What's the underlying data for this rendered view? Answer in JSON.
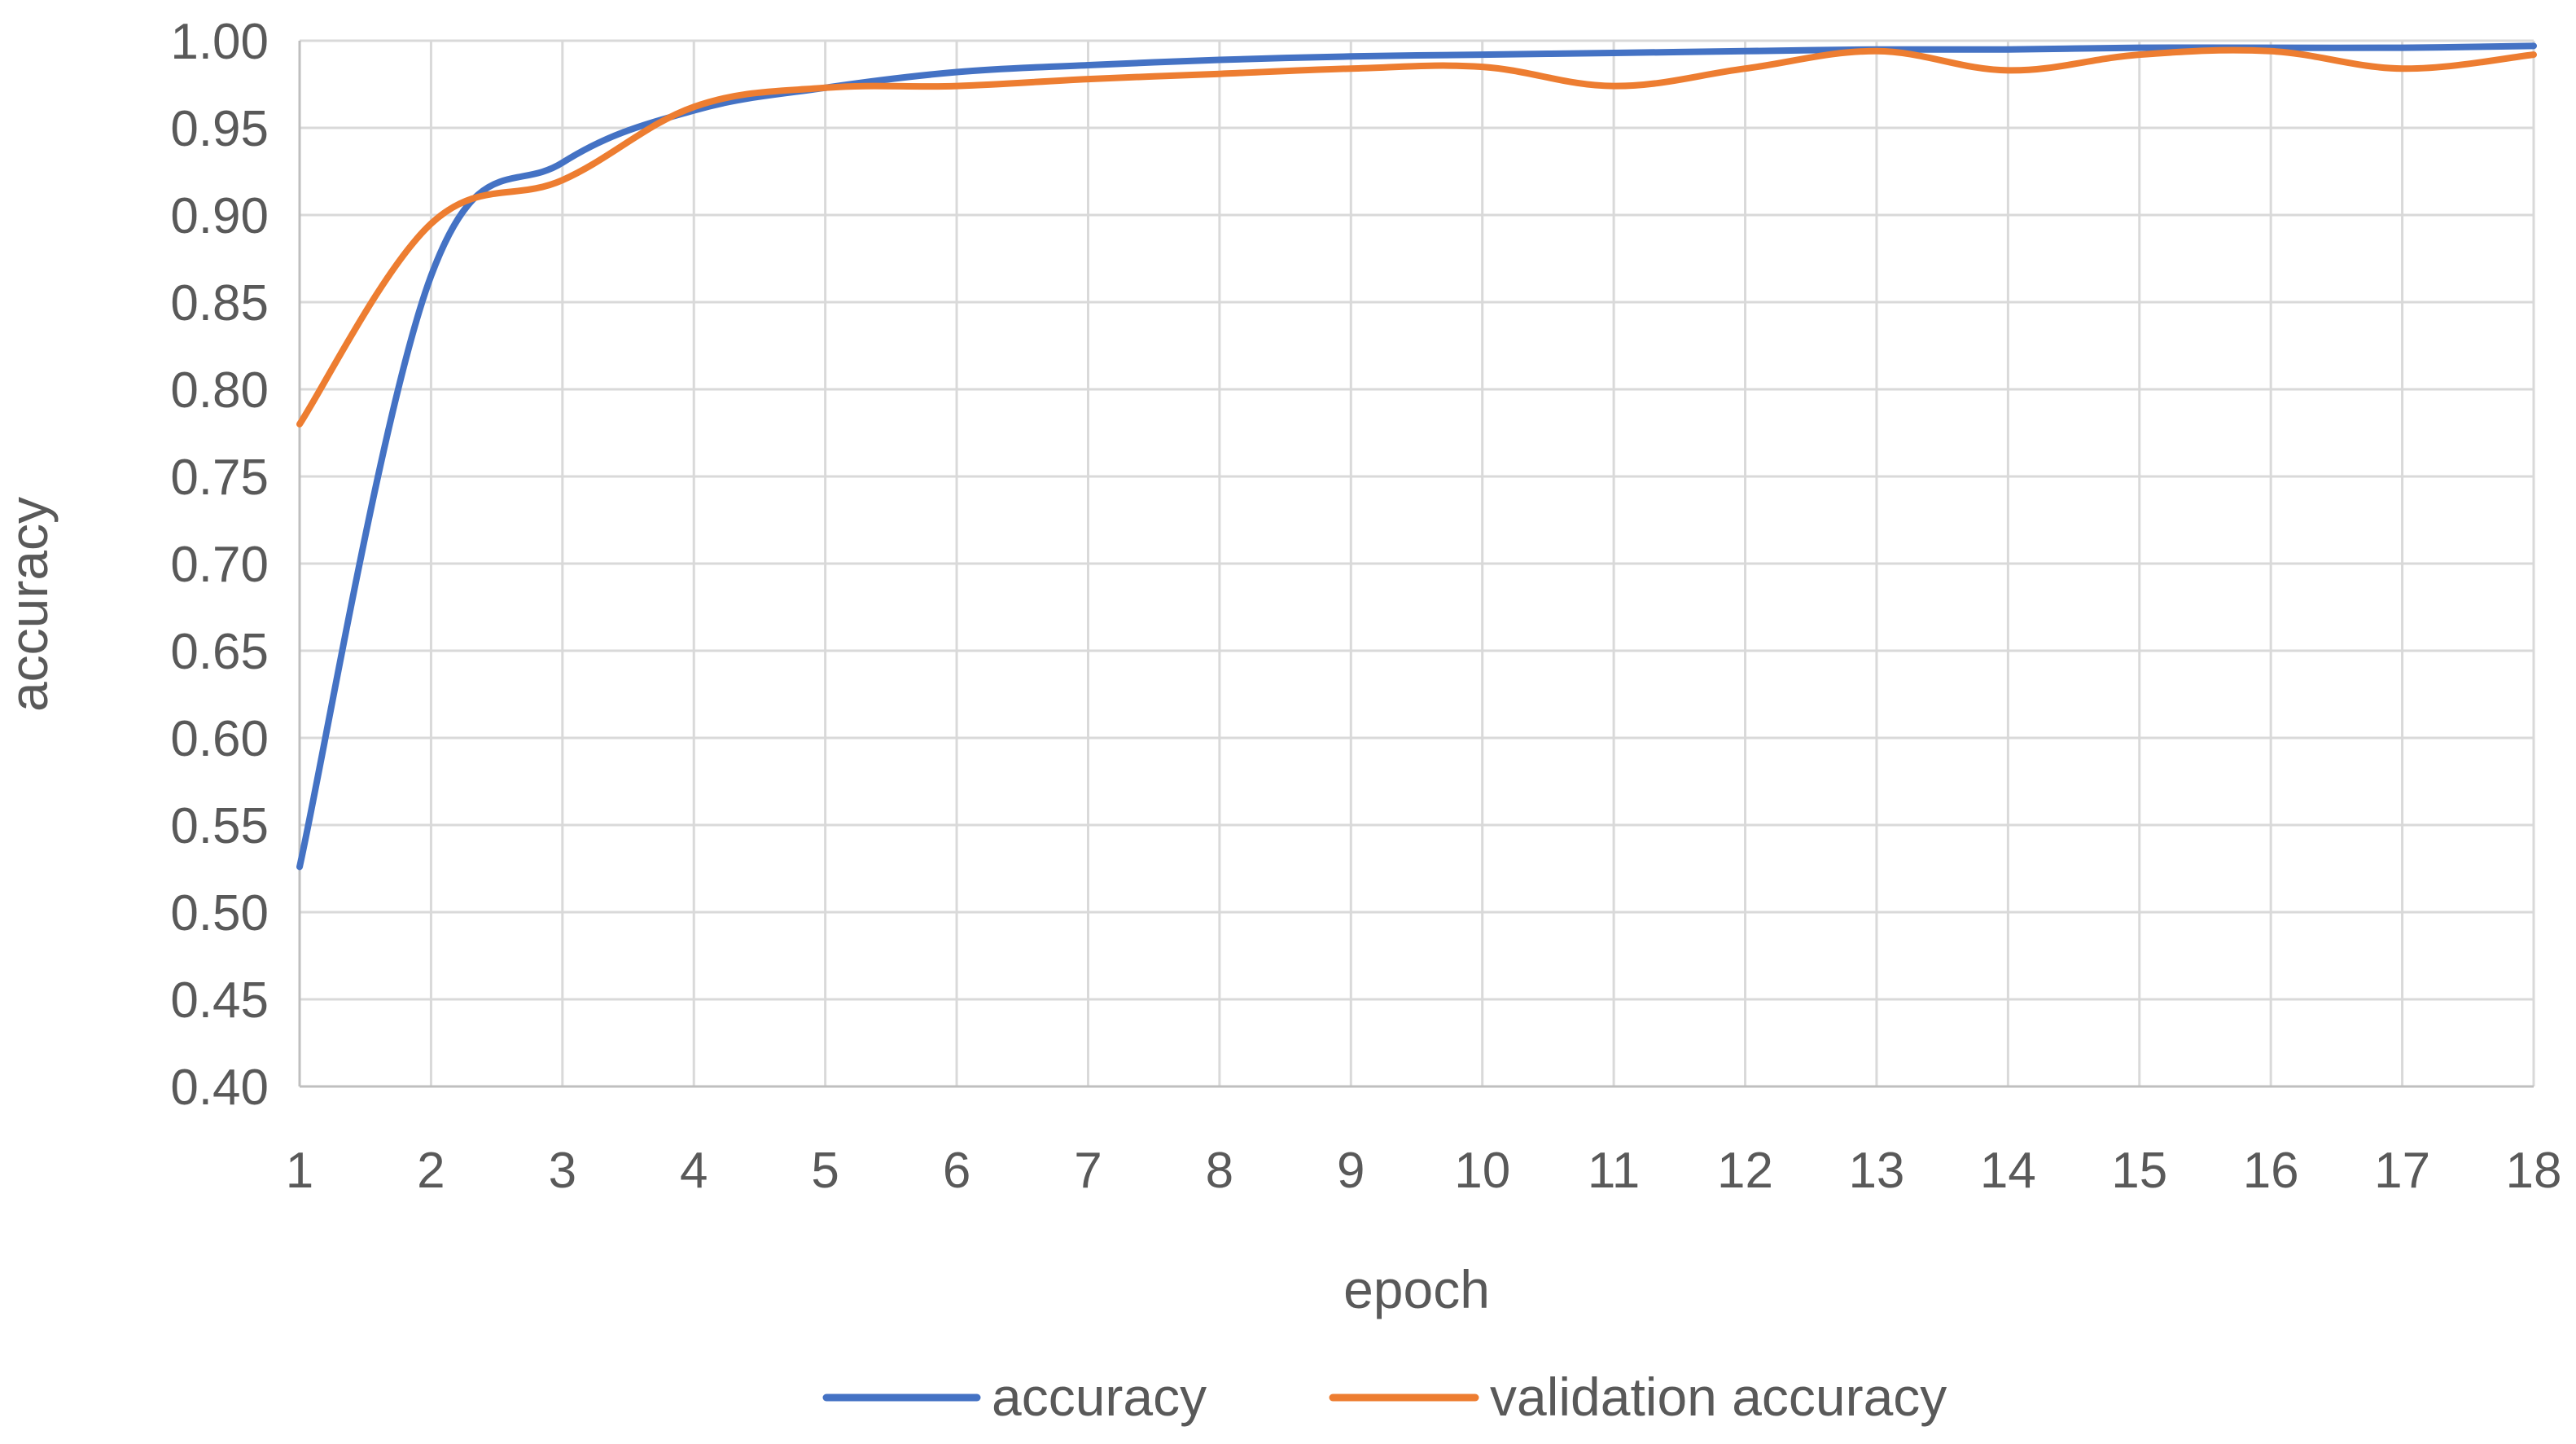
{
  "chart_data": {
    "type": "line",
    "title": "",
    "xlabel": "epoch",
    "ylabel": "accuracy",
    "x": [
      1,
      2,
      3,
      4,
      5,
      6,
      7,
      8,
      9,
      10,
      11,
      12,
      13,
      14,
      15,
      16,
      17,
      18
    ],
    "xticks": [
      "1",
      "2",
      "3",
      "4",
      "5",
      "6",
      "7",
      "8",
      "9",
      "10",
      "11",
      "12",
      "13",
      "14",
      "15",
      "16",
      "17",
      "18"
    ],
    "yticks": [
      "0.40",
      "0.45",
      "0.50",
      "0.55",
      "0.60",
      "0.65",
      "0.70",
      "0.75",
      "0.80",
      "0.85",
      "0.90",
      "0.95",
      "1.00"
    ],
    "ylim": [
      0.4,
      1.0
    ],
    "grid": true,
    "legend_position": "bottom",
    "series": [
      {
        "name": "accuracy",
        "color": "#4472C4",
        "values": [
          0.526,
          0.865,
          0.93,
          0.96,
          0.973,
          0.982,
          0.986,
          0.989,
          0.991,
          0.992,
          0.993,
          0.994,
          0.995,
          0.995,
          0.996,
          0.996,
          0.996,
          0.997
        ]
      },
      {
        "name": "validation accuracy",
        "color": "#ED7D31",
        "values": [
          0.78,
          0.895,
          0.92,
          0.962,
          0.973,
          0.974,
          0.978,
          0.981,
          0.984,
          0.985,
          0.974,
          0.984,
          0.994,
          0.983,
          0.992,
          0.994,
          0.984,
          0.992
        ]
      }
    ]
  }
}
